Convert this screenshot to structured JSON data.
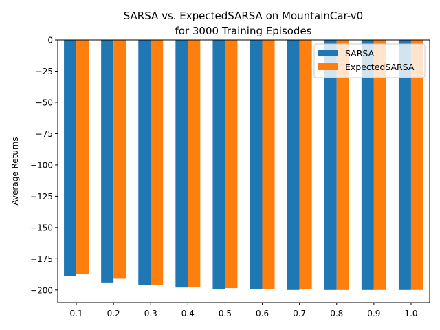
{
  "chart_data": {
    "type": "bar",
    "title_lines": [
      "SARSA vs. ExpectedSARSA on MountainCar-v0",
      "for 3000 Training Episodes"
    ],
    "xlabel": "",
    "ylabel": "Average Returns",
    "categories": [
      "0.1",
      "0.2",
      "0.3",
      "0.4",
      "0.5",
      "0.6",
      "0.7",
      "0.8",
      "0.9",
      "1.0"
    ],
    "series": [
      {
        "name": "SARSA",
        "color": "#1f77b4",
        "values": [
          -189,
          -194,
          -196,
          -198,
          -199,
          -199,
          -200,
          -200,
          -200,
          -200
        ]
      },
      {
        "name": "ExpectedSARSA",
        "color": "#ff7f0e",
        "values": [
          -187,
          -191,
          -196,
          -197.5,
          -198.5,
          -199,
          -199.5,
          -200,
          -200,
          -200
        ]
      }
    ],
    "ylim": [
      -210,
      0
    ],
    "yticks": [
      0,
      -25,
      -50,
      -75,
      -100,
      -125,
      -150,
      -175,
      -200
    ],
    "ytick_labels": [
      "0",
      "−25",
      "−50",
      "−75",
      "−100",
      "−125",
      "−150",
      "−175",
      "−200"
    ],
    "legend_position": "top-right",
    "grid": false
  }
}
